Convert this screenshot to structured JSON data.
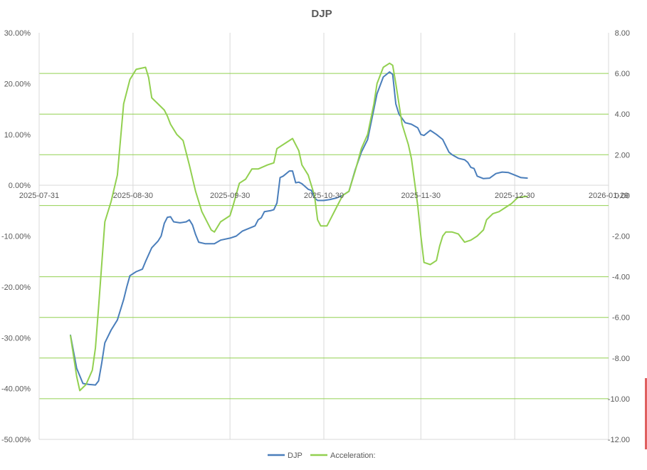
{
  "chart_data": {
    "type": "line",
    "title": "DJP",
    "x_ticks": [
      "2025-07-31",
      "2025-08-30",
      "2025-09-30",
      "2025-10-30",
      "2025-11-30",
      "2025-12-30",
      "2026-01-29"
    ],
    "y_left": {
      "range": [
        -50,
        30
      ],
      "ticks": [
        "30.00%",
        "20.00%",
        "10.00%",
        "0.00%",
        "-10.00%",
        "-20.00%",
        "-30.00%",
        "-40.00%",
        "-50.00%"
      ]
    },
    "y_right": {
      "range": [
        -12,
        8
      ],
      "ticks": [
        "8.00",
        "6.00",
        "4.00",
        "2.00",
        "0.00",
        "-2.00",
        "-4.00",
        "-6.00",
        "-8.00",
        "-10.00",
        "-12.00"
      ]
    },
    "x_range": [
      "2025-07-31",
      "2026-01-29"
    ],
    "reference_lines_right_axis": [
      6,
      4,
      2,
      -0.5,
      -4,
      -6,
      -8,
      -10
    ],
    "series": [
      {
        "name": "DJP",
        "axis": "left",
        "color": "#4a7ebb",
        "points": [
          [
            "2025-08-10",
            -29.5
          ],
          [
            "2025-08-12",
            -36
          ],
          [
            "2025-08-14",
            -39
          ],
          [
            "2025-08-16",
            -39.2
          ],
          [
            "2025-08-18",
            -39.3
          ],
          [
            "2025-08-19",
            -38.5
          ],
          [
            "2025-08-20",
            -35
          ],
          [
            "2025-08-21",
            -31
          ],
          [
            "2025-08-23",
            -28.5
          ],
          [
            "2025-08-25",
            -26.5
          ],
          [
            "2025-08-27",
            -22.5
          ],
          [
            "2025-08-28",
            -20
          ],
          [
            "2025-08-29",
            -17.8
          ],
          [
            "2025-08-31",
            -17
          ],
          [
            "2025-09-02",
            -16.5
          ],
          [
            "2025-09-03",
            -15
          ],
          [
            "2025-09-05",
            -12.3
          ],
          [
            "2025-09-07",
            -11
          ],
          [
            "2025-09-08",
            -10
          ],
          [
            "2025-09-09",
            -7.5
          ],
          [
            "2025-09-10",
            -6.3
          ],
          [
            "2025-09-11",
            -6.2
          ],
          [
            "2025-09-12",
            -7.2
          ],
          [
            "2025-09-14",
            -7.4
          ],
          [
            "2025-09-16",
            -7.2
          ],
          [
            "2025-09-17",
            -6.8
          ],
          [
            "2025-09-18",
            -7.8
          ],
          [
            "2025-09-19",
            -9.7
          ],
          [
            "2025-09-20",
            -11.2
          ],
          [
            "2025-09-22",
            -11.5
          ],
          [
            "2025-09-25",
            -11.5
          ],
          [
            "2025-09-27",
            -10.8
          ],
          [
            "2025-09-30",
            -10.4
          ],
          [
            "2025-10-02",
            -10
          ],
          [
            "2025-10-04",
            -9
          ],
          [
            "2025-10-06",
            -8.5
          ],
          [
            "2025-10-08",
            -8
          ],
          [
            "2025-10-09",
            -6.8
          ],
          [
            "2025-10-10",
            -6.4
          ],
          [
            "2025-10-11",
            -5.2
          ],
          [
            "2025-10-13",
            -5
          ],
          [
            "2025-10-14",
            -4.8
          ],
          [
            "2025-10-15",
            -3.5
          ],
          [
            "2025-10-16",
            1.5
          ],
          [
            "2025-10-17",
            1.8
          ],
          [
            "2025-10-19",
            2.8
          ],
          [
            "2025-10-20",
            2.8
          ],
          [
            "2025-10-21",
            0.5
          ],
          [
            "2025-10-22",
            0.6
          ],
          [
            "2025-10-23",
            0.3
          ],
          [
            "2025-10-25",
            -0.8
          ],
          [
            "2025-10-26",
            -1
          ],
          [
            "2025-10-27",
            -2.5
          ],
          [
            "2025-10-28",
            -3
          ],
          [
            "2025-10-30",
            -3
          ],
          [
            "2025-11-01",
            -2.8
          ],
          [
            "2025-11-03",
            -2.5
          ],
          [
            "2025-11-05",
            -2
          ],
          [
            "2025-11-07",
            -1.2
          ],
          [
            "2025-11-09",
            3
          ],
          [
            "2025-11-11",
            6.5
          ],
          [
            "2025-11-13",
            9
          ],
          [
            "2025-11-15",
            15
          ],
          [
            "2025-11-16",
            18
          ],
          [
            "2025-11-18",
            21.3
          ],
          [
            "2025-11-20",
            22.3
          ],
          [
            "2025-11-21",
            21.8
          ],
          [
            "2025-11-22",
            16
          ],
          [
            "2025-11-23",
            14
          ],
          [
            "2025-11-25",
            12.3
          ],
          [
            "2025-11-27",
            12
          ],
          [
            "2025-11-29",
            11.3
          ],
          [
            "2025-11-30",
            10
          ],
          [
            "2025-12-01",
            9.8
          ],
          [
            "2025-12-03",
            10.8
          ],
          [
            "2025-12-05",
            10
          ],
          [
            "2025-12-07",
            9
          ],
          [
            "2025-12-09",
            6.5
          ],
          [
            "2025-12-10",
            6
          ],
          [
            "2025-12-12",
            5.3
          ],
          [
            "2025-12-14",
            5
          ],
          [
            "2025-12-15",
            4.5
          ],
          [
            "2025-12-16",
            3.5
          ],
          [
            "2025-12-17",
            3.3
          ],
          [
            "2025-12-18",
            1.8
          ],
          [
            "2025-12-20",
            1.3
          ],
          [
            "2025-12-22",
            1.4
          ],
          [
            "2025-12-24",
            2.3
          ],
          [
            "2025-12-26",
            2.6
          ],
          [
            "2025-12-28",
            2.5
          ],
          [
            "2025-12-30",
            2
          ],
          [
            "2026-01-01",
            1.5
          ],
          [
            "2026-01-03",
            1.4
          ]
        ]
      },
      {
        "name": "Acceleration:",
        "axis": "right",
        "color": "#92d050",
        "points": [
          [
            "2025-08-10",
            -6.9
          ],
          [
            "2025-08-12",
            -8.9
          ],
          [
            "2025-08-13",
            -9.6
          ],
          [
            "2025-08-15",
            -9.3
          ],
          [
            "2025-08-17",
            -8.6
          ],
          [
            "2025-08-18",
            -7.5
          ],
          [
            "2025-08-19",
            -5.5
          ],
          [
            "2025-08-21",
            -1.3
          ],
          [
            "2025-08-23",
            -0.3
          ],
          [
            "2025-08-25",
            1
          ],
          [
            "2025-08-27",
            4.5
          ],
          [
            "2025-08-29",
            5.7
          ],
          [
            "2025-08-31",
            6.2
          ],
          [
            "2025-09-03",
            6.3
          ],
          [
            "2025-09-04",
            5.8
          ],
          [
            "2025-09-05",
            4.8
          ],
          [
            "2025-09-07",
            4.5
          ],
          [
            "2025-09-09",
            4.2
          ],
          [
            "2025-09-10",
            3.9
          ],
          [
            "2025-09-11",
            3.5
          ],
          [
            "2025-09-13",
            3
          ],
          [
            "2025-09-15",
            2.7
          ],
          [
            "2025-09-17",
            1.5
          ],
          [
            "2025-09-19",
            0.2
          ],
          [
            "2025-09-21",
            -0.8
          ],
          [
            "2025-09-23",
            -1.4
          ],
          [
            "2025-09-24",
            -1.7
          ],
          [
            "2025-09-25",
            -1.8
          ],
          [
            "2025-09-27",
            -1.3
          ],
          [
            "2025-09-30",
            -1
          ],
          [
            "2025-10-01",
            -0.5
          ],
          [
            "2025-10-03",
            0.6
          ],
          [
            "2025-10-05",
            0.8
          ],
          [
            "2025-10-07",
            1.3
          ],
          [
            "2025-10-09",
            1.3
          ],
          [
            "2025-10-12",
            1.5
          ],
          [
            "2025-10-14",
            1.6
          ],
          [
            "2025-10-15",
            2.3
          ],
          [
            "2025-10-17",
            2.5
          ],
          [
            "2025-10-20",
            2.8
          ],
          [
            "2025-10-22",
            2.2
          ],
          [
            "2025-10-23",
            1.5
          ],
          [
            "2025-10-25",
            1
          ],
          [
            "2025-10-27",
            0
          ],
          [
            "2025-10-28",
            -1.2
          ],
          [
            "2025-10-29",
            -1.5
          ],
          [
            "2025-10-31",
            -1.5
          ],
          [
            "2025-11-01",
            -1.2
          ],
          [
            "2025-11-03",
            -0.6
          ],
          [
            "2025-11-05",
            0
          ],
          [
            "2025-11-07",
            0.2
          ],
          [
            "2025-11-09",
            1.2
          ],
          [
            "2025-11-11",
            2.3
          ],
          [
            "2025-11-13",
            3
          ],
          [
            "2025-11-15",
            4.5
          ],
          [
            "2025-11-16",
            5.5
          ],
          [
            "2025-11-18",
            6.3
          ],
          [
            "2025-11-20",
            6.5
          ],
          [
            "2025-11-21",
            6.4
          ],
          [
            "2025-11-22",
            5.5
          ],
          [
            "2025-11-24",
            3.5
          ],
          [
            "2025-11-26",
            2.5
          ],
          [
            "2025-11-27",
            1.8
          ],
          [
            "2025-11-29",
            -0.5
          ],
          [
            "2025-11-30",
            -2
          ],
          [
            "2025-12-01",
            -3.3
          ],
          [
            "2025-12-03",
            -3.4
          ],
          [
            "2025-12-05",
            -3.2
          ],
          [
            "2025-12-06",
            -2.5
          ],
          [
            "2025-12-07",
            -2
          ],
          [
            "2025-12-08",
            -1.8
          ],
          [
            "2025-12-10",
            -1.8
          ],
          [
            "2025-12-12",
            -1.9
          ],
          [
            "2025-12-14",
            -2.3
          ],
          [
            "2025-12-16",
            -2.2
          ],
          [
            "2025-12-18",
            -2
          ],
          [
            "2025-12-20",
            -1.7
          ],
          [
            "2025-12-21",
            -1.2
          ],
          [
            "2025-12-23",
            -0.9
          ],
          [
            "2025-12-25",
            -0.8
          ],
          [
            "2025-12-27",
            -0.6
          ],
          [
            "2025-12-29",
            -0.4
          ],
          [
            "2025-12-31",
            -0.1
          ],
          [
            "2026-01-03",
            -0.05
          ]
        ]
      }
    ],
    "legend": {
      "position": "bottom",
      "entries": [
        "DJP",
        "Acceleration:"
      ]
    },
    "colors": {
      "djp": "#4a7ebb",
      "acceleration": "#92d050",
      "grid": "#d9d9d9",
      "reference": "#92d050",
      "text": "#595959",
      "right_edge_accent": "#e06060"
    }
  }
}
